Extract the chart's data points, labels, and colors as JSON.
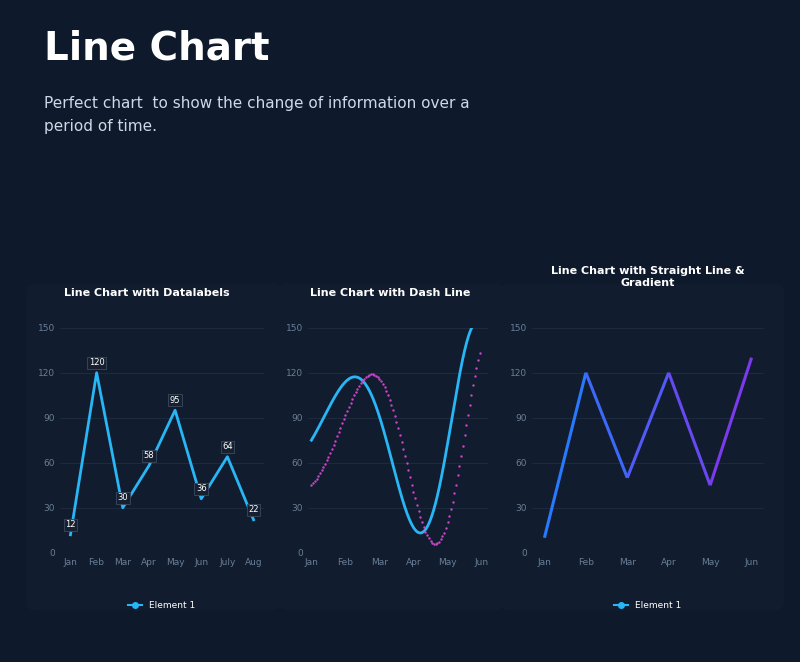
{
  "bg_color": "#0e1a2b",
  "title": "Line Chart",
  "subtitle": "Perfect chart  to show the change of information over a\nperiod of time.",
  "title_color": "#ffffff",
  "subtitle_color": "#d0d8e8",
  "card_bg": "#111d2e",
  "chart1": {
    "title": "Line Chart with Datalabels",
    "x_labels": [
      "Jan",
      "Feb",
      "Mar",
      "Apr",
      "May",
      "Jun",
      "July",
      "Aug"
    ],
    "y_values": [
      12,
      120,
      30,
      58,
      95,
      36,
      64,
      22
    ],
    "line_color": "#29b6f6",
    "ylim": [
      0,
      150
    ],
    "yticks": [
      0,
      30,
      60,
      90,
      120,
      150
    ],
    "legend": "Element 1"
  },
  "chart2": {
    "title": "Line Chart with Dash Line",
    "x_labels": [
      "Jan",
      "Feb",
      "Mar",
      "Apr",
      "May",
      "Jun"
    ],
    "ylim": [
      0,
      150
    ],
    "yticks": [
      0,
      30,
      60,
      90,
      120,
      150
    ],
    "line1_color": "#29b6f6",
    "line2_color": "#cc44cc",
    "n_points": 500
  },
  "chart3": {
    "title": "Line Chart with Straight Line &\nGradient",
    "x_labels": [
      "Jan",
      "Feb",
      "Mar",
      "Apr",
      "May",
      "Jun"
    ],
    "y_values": [
      10,
      120,
      50,
      120,
      45,
      130
    ],
    "ylim": [
      0,
      150
    ],
    "yticks": [
      0,
      30,
      60,
      90,
      120,
      150
    ],
    "legend": "Element 1"
  },
  "grid_color": "#1e2e40",
  "label_color": "#6a7e96"
}
